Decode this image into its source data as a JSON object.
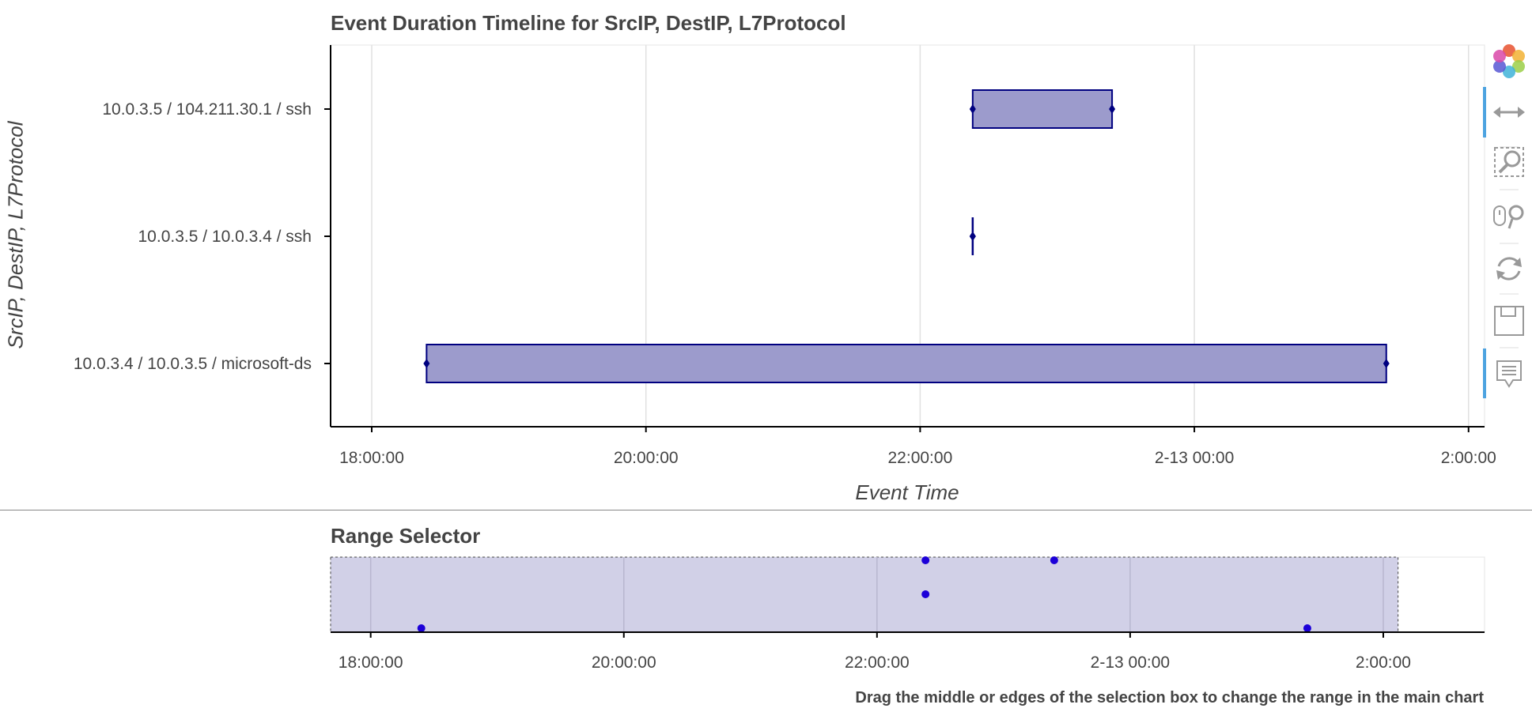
{
  "chart_data": [
    {
      "type": "bar",
      "orientation": "horizontal-timeline",
      "title": "Event Duration Timeline for SrcIP, DestIP, L7Protocol",
      "xlabel": "Event Time",
      "ylabel": "SrcIP, DestIP, L7Protocol",
      "x_ticks": [
        "18:00:00",
        "20:00:00",
        "22:00:00",
        "2-13 00:00",
        "2:00:00"
      ],
      "xlim": [
        "2-12 17:42",
        "2-13 02:07"
      ],
      "grid": true,
      "categories": [
        "10.0.3.5 / 104.211.30.1 / ssh",
        "10.0.3.5 / 10.0.3.4 / ssh",
        "10.0.3.4 / 10.0.3.5 / microsoft-ds"
      ],
      "events": [
        {
          "label": "10.0.3.5 / 104.211.30.1 / ssh",
          "start": "2-12 22:23",
          "end": "2-12 23:24"
        },
        {
          "label": "10.0.3.5 / 10.0.3.4 / ssh",
          "start": "2-12 22:23",
          "end": "2-12 22:23"
        },
        {
          "label": "10.0.3.4 / 10.0.3.5 / microsoft-ds",
          "start": "2-12 18:24",
          "end": "2-13 01:24"
        }
      ],
      "colors": {
        "fill": "#9c9bcc",
        "stroke": "#000080",
        "grid": "#e0e0e0"
      }
    },
    {
      "type": "scatter",
      "title": "Range Selector",
      "x_ticks": [
        "18:00:00",
        "20:00:00",
        "22:00:00",
        "2-13 00:00",
        "2:00:00"
      ],
      "xlim": [
        "2-12 17:41",
        "2-13 02:48"
      ],
      "selection": [
        "2-12 17:41",
        "2-13 02:07"
      ],
      "points": [
        {
          "x": "2-12 22:23",
          "row": 0
        },
        {
          "x": "2-12 23:24",
          "row": 0
        },
        {
          "x": "2-12 22:23",
          "row": 1
        },
        {
          "x": "2-12 18:24",
          "row": 2
        },
        {
          "x": "2-13 01:24",
          "row": 2
        }
      ],
      "colors": {
        "point": "#1c00d8",
        "selection_fill": "#cfcde6"
      }
    }
  ],
  "note": "Drag the middle or edges of the selection box to change the range in the main chart",
  "toolbar": {
    "tools": [
      "bokeh-logo-icon",
      "xpan-icon",
      "box-zoom-icon",
      "wheel-zoom-icon",
      "reset-icon",
      "save-icon",
      "hover-icon"
    ]
  }
}
